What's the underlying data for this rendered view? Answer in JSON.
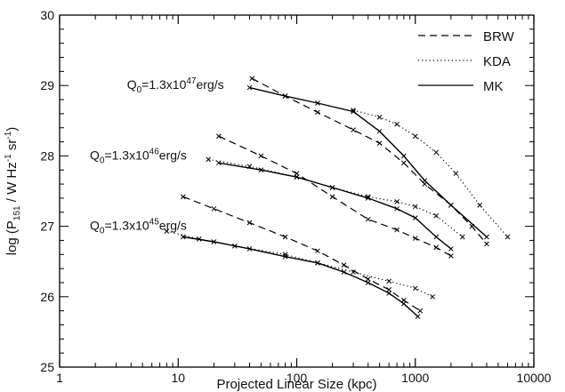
{
  "chart_data": {
    "type": "line",
    "xscale": "log",
    "xlim": [
      1,
      10000
    ],
    "ylim": [
      25,
      30
    ],
    "xlabel": "Projected Linear Size (kpc)",
    "ylabel": {
      "prefix": "log (P",
      "sub": "151",
      "mid": " / W Hz",
      "sup": "-1",
      "mid2": " sr",
      "sup2": "-1",
      "suffix": ")"
    },
    "xticks": [
      {
        "value": 1,
        "label": "1"
      },
      {
        "value": 10,
        "label": "10"
      },
      {
        "value": 100,
        "label": "100"
      },
      {
        "value": 1000,
        "label": "1000"
      },
      {
        "value": 10000,
        "label": "10000"
      }
    ],
    "yticks": [
      {
        "value": 25,
        "label": "25"
      },
      {
        "value": 26,
        "label": "26"
      },
      {
        "value": 27,
        "label": "27"
      },
      {
        "value": 28,
        "label": "28"
      },
      {
        "value": 29,
        "label": "29"
      },
      {
        "value": 30,
        "label": "30"
      }
    ],
    "legend": {
      "position": "top-right",
      "entries": [
        {
          "label": "BRW",
          "style": "dashed"
        },
        {
          "label": "KDA",
          "style": "dotted"
        },
        {
          "label": "MK",
          "style": "solid"
        }
      ]
    },
    "annotations": [
      {
        "prefix": "Q",
        "sub": "0",
        "mid": "=1.3x10",
        "sup": "47",
        "suffix": "erg/s",
        "x": 3.7,
        "y": 28.95
      },
      {
        "prefix": "Q",
        "sub": "0",
        "mid": "=1.3x10",
        "sup": "46",
        "suffix": "erg/s",
        "x": 1.8,
        "y": 27.95
      },
      {
        "prefix": "Q",
        "sub": "0",
        "mid": "=1.3x10",
        "sup": "45",
        "suffix": "erg/s",
        "x": 1.8,
        "y": 26.95
      }
    ],
    "series": [
      {
        "model": "BRW",
        "group": "Q0=1.3x10^47",
        "style": "dashed",
        "x": [
          42,
          80,
          150,
          300,
          500,
          800,
          1200,
          2000,
          3000,
          4000
        ],
        "y": [
          29.1,
          28.85,
          28.62,
          28.37,
          28.18,
          27.9,
          27.6,
          27.3,
          27.0,
          26.75
        ]
      },
      {
        "model": "KDA",
        "group": "Q0=1.3x10^47",
        "style": "dotted",
        "x": [
          300,
          500,
          700,
          1000,
          1500,
          2200,
          3500,
          6000
        ],
        "y": [
          28.65,
          28.55,
          28.45,
          28.28,
          28.05,
          27.75,
          27.3,
          26.85
        ]
      },
      {
        "model": "MK",
        "group": "Q0=1.3x10^47",
        "style": "solid",
        "x": [
          40,
          80,
          150,
          300,
          500,
          800,
          1200,
          2000,
          4000
        ],
        "y": [
          28.97,
          28.85,
          28.75,
          28.63,
          28.35,
          28.0,
          27.65,
          27.3,
          26.85
        ]
      },
      {
        "model": "BRW",
        "group": "Q0=1.3x10^46",
        "style": "dashed",
        "x": [
          22,
          50,
          100,
          200,
          400,
          700,
          1000,
          1500,
          2000
        ],
        "y": [
          28.28,
          28.0,
          27.75,
          27.42,
          27.1,
          26.95,
          26.83,
          26.7,
          26.58
        ]
      },
      {
        "model": "KDA",
        "group": "Q0=1.3x10^46",
        "style": "dotted",
        "x": [
          18,
          40,
          100,
          200,
          400,
          700,
          1000,
          1500,
          2500
        ],
        "y": [
          27.95,
          27.85,
          27.7,
          27.55,
          27.42,
          27.35,
          27.28,
          27.15,
          26.85
        ]
      },
      {
        "model": "MK",
        "group": "Q0=1.3x10^46",
        "style": "solid",
        "x": [
          22,
          50,
          100,
          200,
          400,
          700,
          1000,
          1500,
          2000
        ],
        "y": [
          27.9,
          27.8,
          27.7,
          27.55,
          27.4,
          27.25,
          27.12,
          26.85,
          26.68
        ]
      },
      {
        "model": "BRW",
        "group": "Q0=1.3x10^45",
        "style": "dashed",
        "x": [
          11,
          20,
          40,
          80,
          150,
          250,
          400,
          600,
          800,
          1100
        ],
        "y": [
          27.42,
          27.25,
          27.05,
          26.85,
          26.65,
          26.45,
          26.25,
          26.1,
          25.95,
          25.8
        ]
      },
      {
        "model": "KDA",
        "group": "Q0=1.3x10^45",
        "style": "dotted",
        "x": [
          8,
          15,
          30,
          80,
          150,
          300,
          600,
          1000,
          1400
        ],
        "y": [
          26.93,
          26.82,
          26.72,
          26.6,
          26.48,
          26.35,
          26.22,
          26.12,
          26.0
        ]
      },
      {
        "model": "MK",
        "group": "Q0=1.3x10^45",
        "style": "solid",
        "x": [
          11,
          20,
          40,
          80,
          150,
          250,
          400,
          600,
          800,
          1050
        ],
        "y": [
          26.85,
          26.78,
          26.68,
          26.57,
          26.48,
          26.35,
          26.2,
          26.05,
          25.9,
          25.72
        ]
      }
    ]
  }
}
